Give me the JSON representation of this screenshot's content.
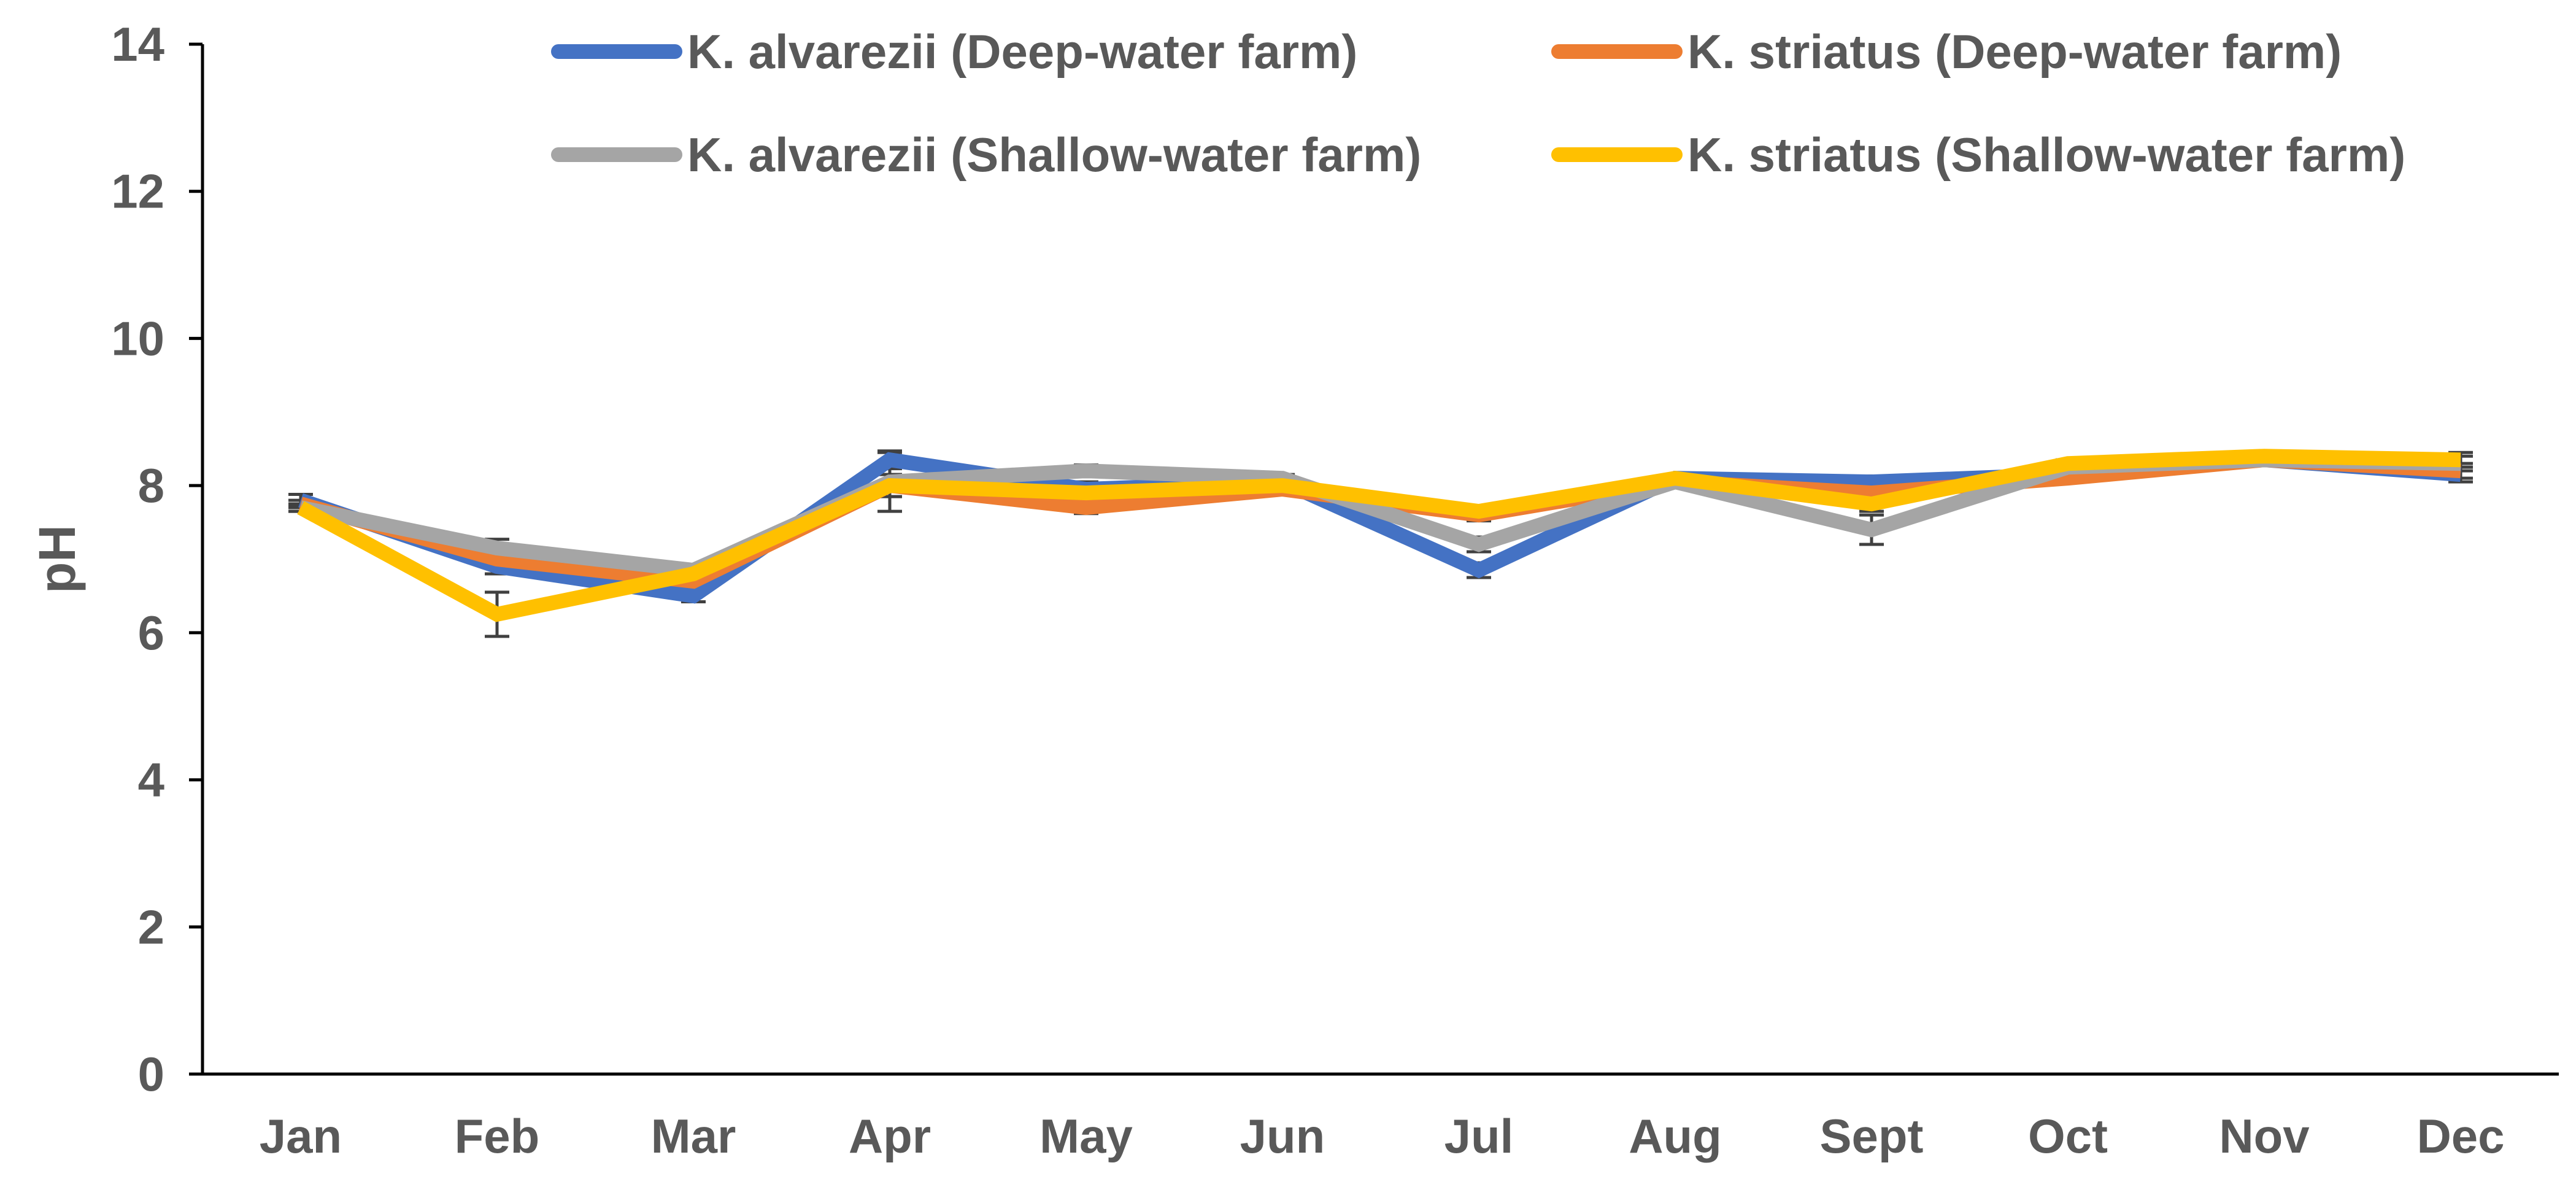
{
  "chart_data": {
    "type": "line",
    "title": "",
    "xlabel": "",
    "ylabel": "pH",
    "categories": [
      "Jan",
      "Feb",
      "Mar",
      "Apr",
      "May",
      "Jun",
      "Jul",
      "Aug",
      "Sept",
      "Oct",
      "Nov",
      "Dec"
    ],
    "ylim": [
      0,
      14
    ],
    "yticks": [
      0,
      2,
      4,
      6,
      8,
      10,
      12,
      14
    ],
    "grid": false,
    "legend_position": "top",
    "error_bars": true,
    "series": [
      {
        "name": "K. alvarezii (Deep-water farm)",
        "color": "#4472C4",
        "values": [
          7.8,
          6.9,
          6.5,
          8.35,
          7.95,
          8.05,
          6.85,
          8.1,
          8.05,
          8.15,
          8.35,
          8.15
        ],
        "errors": [
          0.08,
          0.1,
          0.08,
          0.12,
          0.1,
          0.05,
          0.1,
          0.05,
          0.08,
          0.05,
          0.05,
          0.1
        ]
      },
      {
        "name": "K. striatus (Deep-water farm)",
        "color": "#ED7D31",
        "values": [
          7.75,
          7.0,
          6.7,
          8.0,
          7.7,
          7.95,
          7.6,
          8.05,
          7.9,
          8.1,
          8.35,
          8.2
        ],
        "errors": [
          0.05,
          0.12,
          0.08,
          0.15,
          0.08,
          0.05,
          0.08,
          0.05,
          0.08,
          0.05,
          0.05,
          0.1
        ]
      },
      {
        "name": "K. alvarezii (Shallow-water farm)",
        "color": "#A5A5A5",
        "values": [
          7.7,
          7.15,
          6.85,
          8.05,
          8.2,
          8.1,
          7.2,
          8.05,
          7.4,
          8.25,
          8.35,
          8.3
        ],
        "errors": [
          0.05,
          0.12,
          0.06,
          0.4,
          0.08,
          0.05,
          0.1,
          0.05,
          0.2,
          0.05,
          0.05,
          0.1
        ]
      },
      {
        "name": "K. striatus (Shallow-water farm)",
        "color": "#FFC000",
        "values": [
          7.7,
          6.25,
          6.8,
          8.0,
          7.9,
          8.0,
          7.65,
          8.1,
          7.75,
          8.3,
          8.4,
          8.35
        ],
        "errors": [
          0.05,
          0.3,
          0.06,
          0.15,
          0.08,
          0.05,
          0.08,
          0.05,
          0.1,
          0.05,
          0.05,
          0.1
        ]
      }
    ]
  }
}
